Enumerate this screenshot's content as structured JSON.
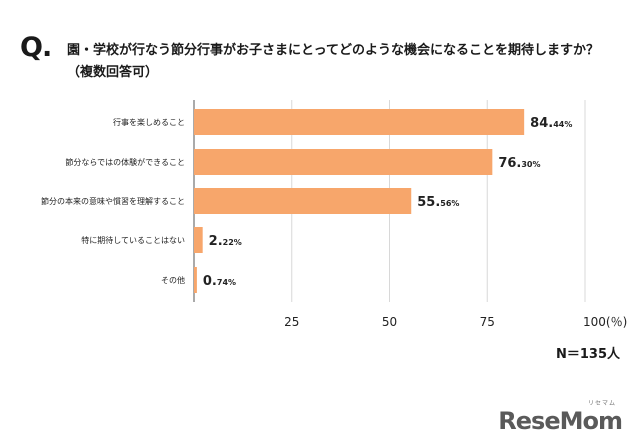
{
  "header": {
    "q_mark": "Q.",
    "question": "園・学校が行なう節分行事がお子さまにとってどのような機会になることを期待しますか？（複数回答可）"
  },
  "sample": {
    "label": "N＝135人"
  },
  "brand": {
    "name": "ReseMom",
    "ruby": "リセマム"
  },
  "colors": {
    "bar": "#F7A66B",
    "grid": "#d8d8d8",
    "axis": "#555555"
  },
  "chart_data": {
    "type": "bar",
    "orientation": "horizontal",
    "categories": [
      "行事を楽しめること",
      "節分ならではの体験ができること",
      "節分の本来の意味や慣習を理解すること",
      "特に期待していることはない",
      "その他"
    ],
    "values": [
      84.44,
      76.3,
      55.56,
      2.22,
      0.74
    ],
    "value_labels": [
      {
        "int": "84.",
        "dec": "44%"
      },
      {
        "int": "76.",
        "dec": "30%"
      },
      {
        "int": "55.",
        "dec": "56%"
      },
      {
        "int": "2.",
        "dec": "22%"
      },
      {
        "int": "0.",
        "dec": "74%"
      }
    ],
    "xlim": [
      0,
      100
    ],
    "xticks": [
      25,
      50,
      75,
      100
    ],
    "xtick_labels": [
      "25",
      "50",
      "75",
      "100(％)"
    ],
    "grid": "vertical",
    "legend": "none"
  }
}
